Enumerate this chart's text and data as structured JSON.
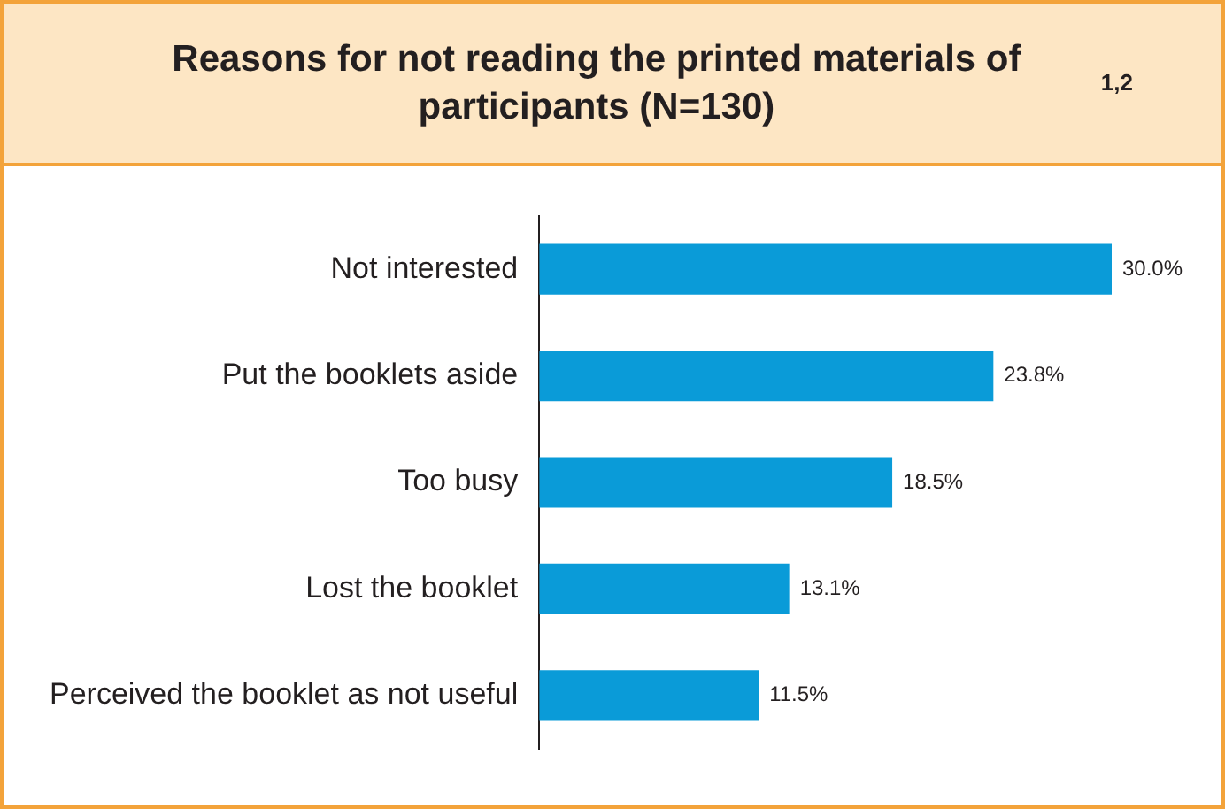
{
  "chart_data": {
    "type": "bar",
    "orientation": "horizontal",
    "title": "Reasons for not reading the printed materials of participants (N=130)$^{1,2}$",
    "categories": [
      "Not interested",
      "Put the booklets aside",
      "Too busy",
      "Lost the booklet",
      "Perceived the booklet as not useful"
    ],
    "values": [
      30.0,
      23.8,
      18.5,
      13.1,
      11.5
    ],
    "value_labels": [
      "30.0%",
      "23.8%",
      "18.5%",
      "13.1%",
      "11.5%"
    ],
    "color": "#0a9bd8",
    "grid": false,
    "legend": false
  }
}
